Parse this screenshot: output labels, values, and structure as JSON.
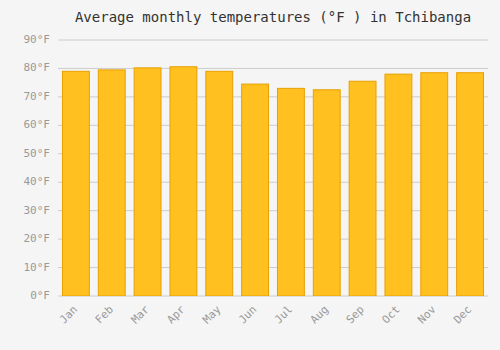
{
  "chart_data": {
    "type": "bar",
    "title": "Average monthly temperatures (°F ) in Tchibanga",
    "categories": [
      "Jan",
      "Feb",
      "Mar",
      "Apr",
      "May",
      "Jun",
      "Jul",
      "Aug",
      "Sep",
      "Oct",
      "Nov",
      "Dec"
    ],
    "values": [
      79.0,
      79.5,
      80.2,
      80.6,
      79.0,
      74.5,
      73.0,
      72.5,
      75.5,
      78.0,
      78.5,
      78.5
    ],
    "color": "#FFC020",
    "ylim": [
      0,
      90
    ],
    "yticks": [
      {
        "value": 0,
        "label": "0°F"
      },
      {
        "value": 10,
        "label": "10°F"
      },
      {
        "value": 20,
        "label": "20°F"
      },
      {
        "value": 30,
        "label": "30°F"
      },
      {
        "value": 40,
        "label": "40°F"
      },
      {
        "value": 50,
        "label": "50°F"
      },
      {
        "value": 60,
        "label": "60°F"
      },
      {
        "value": 70,
        "label": "70°F"
      },
      {
        "value": 80,
        "label": "80°F"
      },
      {
        "value": 90,
        "label": "90°F"
      }
    ],
    "grid": true
  }
}
